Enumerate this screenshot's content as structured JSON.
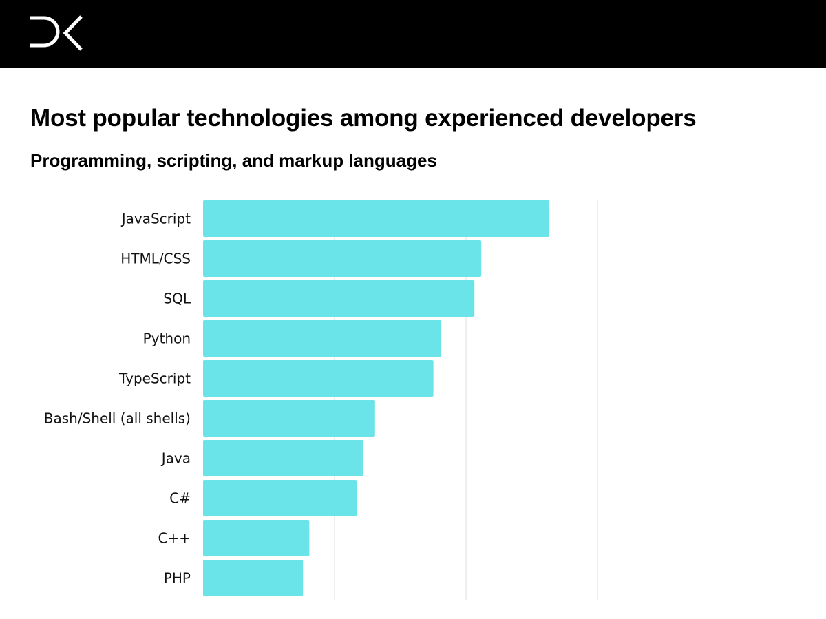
{
  "header": {
    "logo": "DK"
  },
  "title": "Most popular technologies among experienced developers",
  "subtitle": "Programming, scripting, and markup languages",
  "chart_data": {
    "type": "bar",
    "orientation": "horizontal",
    "title": "Most popular technologies among experienced developers",
    "subtitle": "Programming, scripting, and markup languages",
    "categories": [
      "JavaScript",
      "HTML/CSS",
      "SQL",
      "Python",
      "TypeScript",
      "Bash/Shell (all shells)",
      "Java",
      "C#",
      "C++",
      "PHP"
    ],
    "values": [
      65.8,
      52.9,
      51.6,
      45.3,
      43.8,
      32.7,
      30.5,
      29.2,
      20.2,
      19.0
    ],
    "xlim": [
      0,
      75
    ],
    "gridlines": [
      25,
      50,
      75
    ],
    "grid": true,
    "tick_labels_shown": false,
    "bar_color": "#6ae4e8",
    "grid_color": "#dddddd"
  }
}
